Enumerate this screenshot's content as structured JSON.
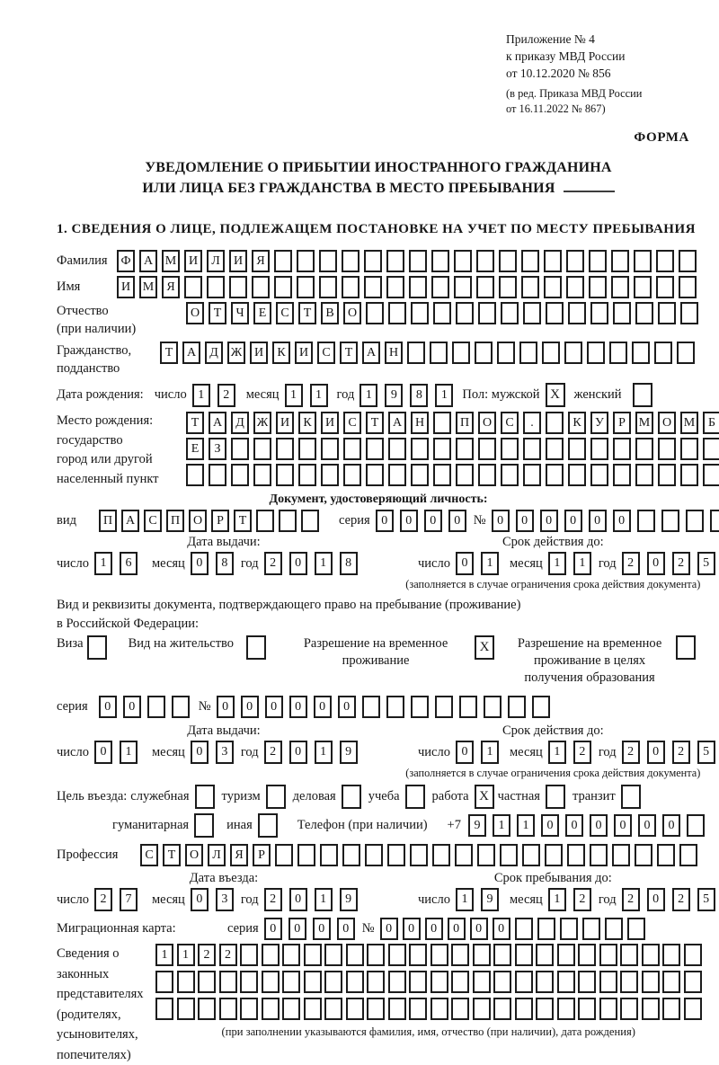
{
  "header": {
    "appendix_lines": [
      "Приложение № 4",
      "к приказу МВД России",
      "от 10.12.2020 № 856"
    ],
    "amendment_lines": [
      "(в ред. Приказа МВД России",
      "от 16.11.2022 № 867)"
    ],
    "forma_label": "ФОРМА"
  },
  "title": {
    "line1": "УВЕДОМЛЕНИЕ О ПРИБЫТИИ ИНОСТРАННОГО ГРАЖДАНИНА",
    "line2": "ИЛИ ЛИЦА БЕЗ ГРАЖДАНСТВА В МЕСТО ПРЕБЫВАНИЯ"
  },
  "section1_heading": "1. СВЕДЕНИЯ О ЛИЦЕ, ПОДЛЕЖАЩЕМ ПОСТАНОВКЕ НА УЧЕТ ПО МЕСТУ ПРЕБЫВАНИЯ",
  "date_labels": {
    "day": "число",
    "month": "месяц",
    "year": "год"
  },
  "person": {
    "surname": {
      "label": "Фамилия",
      "value": "ФАМИЛИЯ",
      "cells": 26
    },
    "given_name": {
      "label": "Имя",
      "value": "ИМЯ",
      "cells": 26
    },
    "patronymic": {
      "label1": "Отчество",
      "label2": "(при наличии)",
      "value": "ОТЧЕСТВО",
      "cells": 23
    },
    "citizenship": {
      "label1": "Гражданство,",
      "label2": "подданство",
      "value": "ТАДЖИКИСТАН",
      "cells": 24
    },
    "birth_date": {
      "label": "Дата рождения:",
      "day": {
        "value": "12",
        "cells": 2
      },
      "month": {
        "value": "11",
        "cells": 2
      },
      "year": {
        "value": "1981",
        "cells": 4
      }
    },
    "sex": {
      "label": "Пол: мужской",
      "male_box": {
        "value": "X",
        "cells": 1
      },
      "female_label": "женский",
      "female_box": {
        "value": "",
        "cells": 1
      }
    },
    "birth_place": {
      "labels": [
        "Место рождения:",
        "государство",
        "город или другой",
        "населенный пункт"
      ],
      "row1": {
        "value": "ТАДЖИКИСТАН ПОС. КУРМОМБ",
        "cells": 24
      },
      "row2": {
        "value": "ЕЗ",
        "cells": 24
      },
      "row3": {
        "value": "",
        "cells": 24
      }
    }
  },
  "identity_doc": {
    "heading": "Документ, удостоверяющий личность:",
    "kind_label": "вид",
    "kind": {
      "value": "ПАСПОРТ",
      "cells": 10
    },
    "series_label": "серия",
    "series": {
      "value": "0000",
      "cells": 4
    },
    "number_label": "№",
    "number": {
      "value": "000000",
      "cells": 10
    },
    "issue_title": "Дата выдачи:",
    "issue": {
      "day": {
        "value": "16",
        "cells": 2
      },
      "month": {
        "value": "08",
        "cells": 2
      },
      "year": {
        "value": "2018",
        "cells": 4
      }
    },
    "valid_title": "Срок действия до:",
    "valid": {
      "day": {
        "value": "01",
        "cells": 2
      },
      "month": {
        "value": "11",
        "cells": 2
      },
      "year": {
        "value": "2025",
        "cells": 4
      }
    },
    "valid_note": "(заполняется в случае ограничения срока действия документа)"
  },
  "residence_doc": {
    "intro_line1": "Вид и реквизиты документа, подтверждающего право на пребывание (проживание)",
    "intro_line2": "в Российской Федерации:",
    "options": [
      {
        "label": "Виза",
        "box": {
          "value": "",
          "cells": 1
        }
      },
      {
        "label": "Вид на жительство",
        "box": {
          "value": "",
          "cells": 1
        }
      },
      {
        "label": "Разрешение на временное проживание",
        "box": {
          "value": "X",
          "cells": 1
        }
      },
      {
        "label": "Разрешение на временное проживание в целях получения образования",
        "box": {
          "value": "",
          "cells": 1
        }
      }
    ],
    "series_label": "серия",
    "series": {
      "value": "00",
      "cells": 4
    },
    "number_label": "№",
    "number": {
      "value": "000000",
      "cells": 14
    },
    "issue_title": "Дата выдачи:",
    "issue": {
      "day": {
        "value": "01",
        "cells": 2
      },
      "month": {
        "value": "03",
        "cells": 2
      },
      "year": {
        "value": "2019",
        "cells": 4
      }
    },
    "valid_title": "Срок действия до:",
    "valid": {
      "day": {
        "value": "01",
        "cells": 2
      },
      "month": {
        "value": "12",
        "cells": 2
      },
      "year": {
        "value": "2025",
        "cells": 4
      }
    },
    "valid_note": "(заполняется в случае ограничения срока действия документа)"
  },
  "visit": {
    "purpose_label": "Цель въезда:",
    "purposes_row1": [
      {
        "label": "служебная",
        "box": {
          "value": "",
          "cells": 1
        }
      },
      {
        "label": "туризм",
        "box": {
          "value": "",
          "cells": 1
        }
      },
      {
        "label": "деловая",
        "box": {
          "value": "",
          "cells": 1
        }
      },
      {
        "label": "учеба",
        "box": {
          "value": "",
          "cells": 1
        }
      },
      {
        "label": "работа",
        "box": {
          "value": "X",
          "cells": 1
        }
      },
      {
        "label": "частная",
        "box": {
          "value": "",
          "cells": 1
        }
      },
      {
        "label": "транзит",
        "box": {
          "value": "",
          "cells": 1
        }
      }
    ],
    "purposes_row2": [
      {
        "label": "гуманитарная",
        "box": {
          "value": "",
          "cells": 1
        }
      },
      {
        "label": "иная",
        "box": {
          "value": "",
          "cells": 1
        }
      }
    ],
    "phone_label": "Телефон (при наличии)",
    "phone_prefix": "+7",
    "phone": {
      "value": "911000000",
      "cells": 10
    },
    "profession": {
      "label": "Профессия",
      "value": "СТОЛЯР",
      "cells": 25
    },
    "entry_title": "Дата въезда:",
    "entry": {
      "day": {
        "value": "27",
        "cells": 2
      },
      "month": {
        "value": "03",
        "cells": 2
      },
      "year": {
        "value": "2019",
        "cells": 4
      }
    },
    "stay_title": "Срок пребывания до:",
    "stay": {
      "day": {
        "value": "19",
        "cells": 2
      },
      "month": {
        "value": "12",
        "cells": 2
      },
      "year": {
        "value": "2025",
        "cells": 4
      }
    },
    "migration_card": {
      "label": "Миграционная карта:",
      "series_label": "серия",
      "series": {
        "value": "0000",
        "cells": 4
      },
      "number_label": "№",
      "number": {
        "value": "000000",
        "cells": 12
      }
    }
  },
  "representatives": {
    "labels": [
      "Сведения о",
      "законных",
      "представителях",
      "(родителях,",
      "усыновителях,",
      "попечителях)"
    ],
    "row1": {
      "value": "1122",
      "cells": 26
    },
    "row2": {
      "value": "",
      "cells": 26
    },
    "row3": {
      "value": "",
      "cells": 26
    },
    "note": "(при заполнении указываются фамилия, имя, отчество (при наличии), дата рождения)"
  }
}
